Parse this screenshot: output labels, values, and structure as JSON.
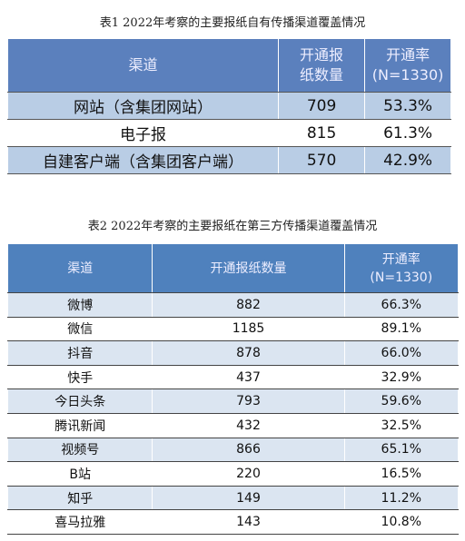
{
  "table1": {
    "title": "表1  2022年考察的主要报纸自有传播渠道覆盖情况",
    "header": [
      [
        "渠道"
      ],
      [
        "开通报",
        "纸数量"
      ],
      [
        "开通率",
        "(N=1330)"
      ]
    ],
    "rows": [
      [
        "网站（含集团网站）",
        "709",
        "53.3%"
      ],
      [
        "电子报",
        "815",
        "61.3%"
      ],
      [
        "自建客户端（含集团客户端）",
        "570",
        "42.9%"
      ]
    ]
  },
  "table2": {
    "title": "表2  2022年考察的主要报纸在第三方传播渠道覆盖情况",
    "header": [
      [
        "渠道"
      ],
      [
        "开通报纸数量"
      ],
      [
        "开通率",
        "(N=1330)"
      ]
    ],
    "rows": [
      [
        "微博",
        "882",
        "66.3%"
      ],
      [
        "微信",
        "1185",
        "89.1%"
      ],
      [
        "抖音",
        "878",
        "66.0%"
      ],
      [
        "快手",
        "437",
        "32.9%"
      ],
      [
        "今日头条",
        "793",
        "59.6%"
      ],
      [
        "腾讯新闻",
        "432",
        "32.5%"
      ],
      [
        "视频号",
        "866",
        "65.1%"
      ],
      [
        "B站",
        "220",
        "16.5%"
      ],
      [
        "知乎",
        "149",
        "11.2%"
      ],
      [
        "喜马拉雅",
        "143",
        "10.8%"
      ]
    ]
  }
}
